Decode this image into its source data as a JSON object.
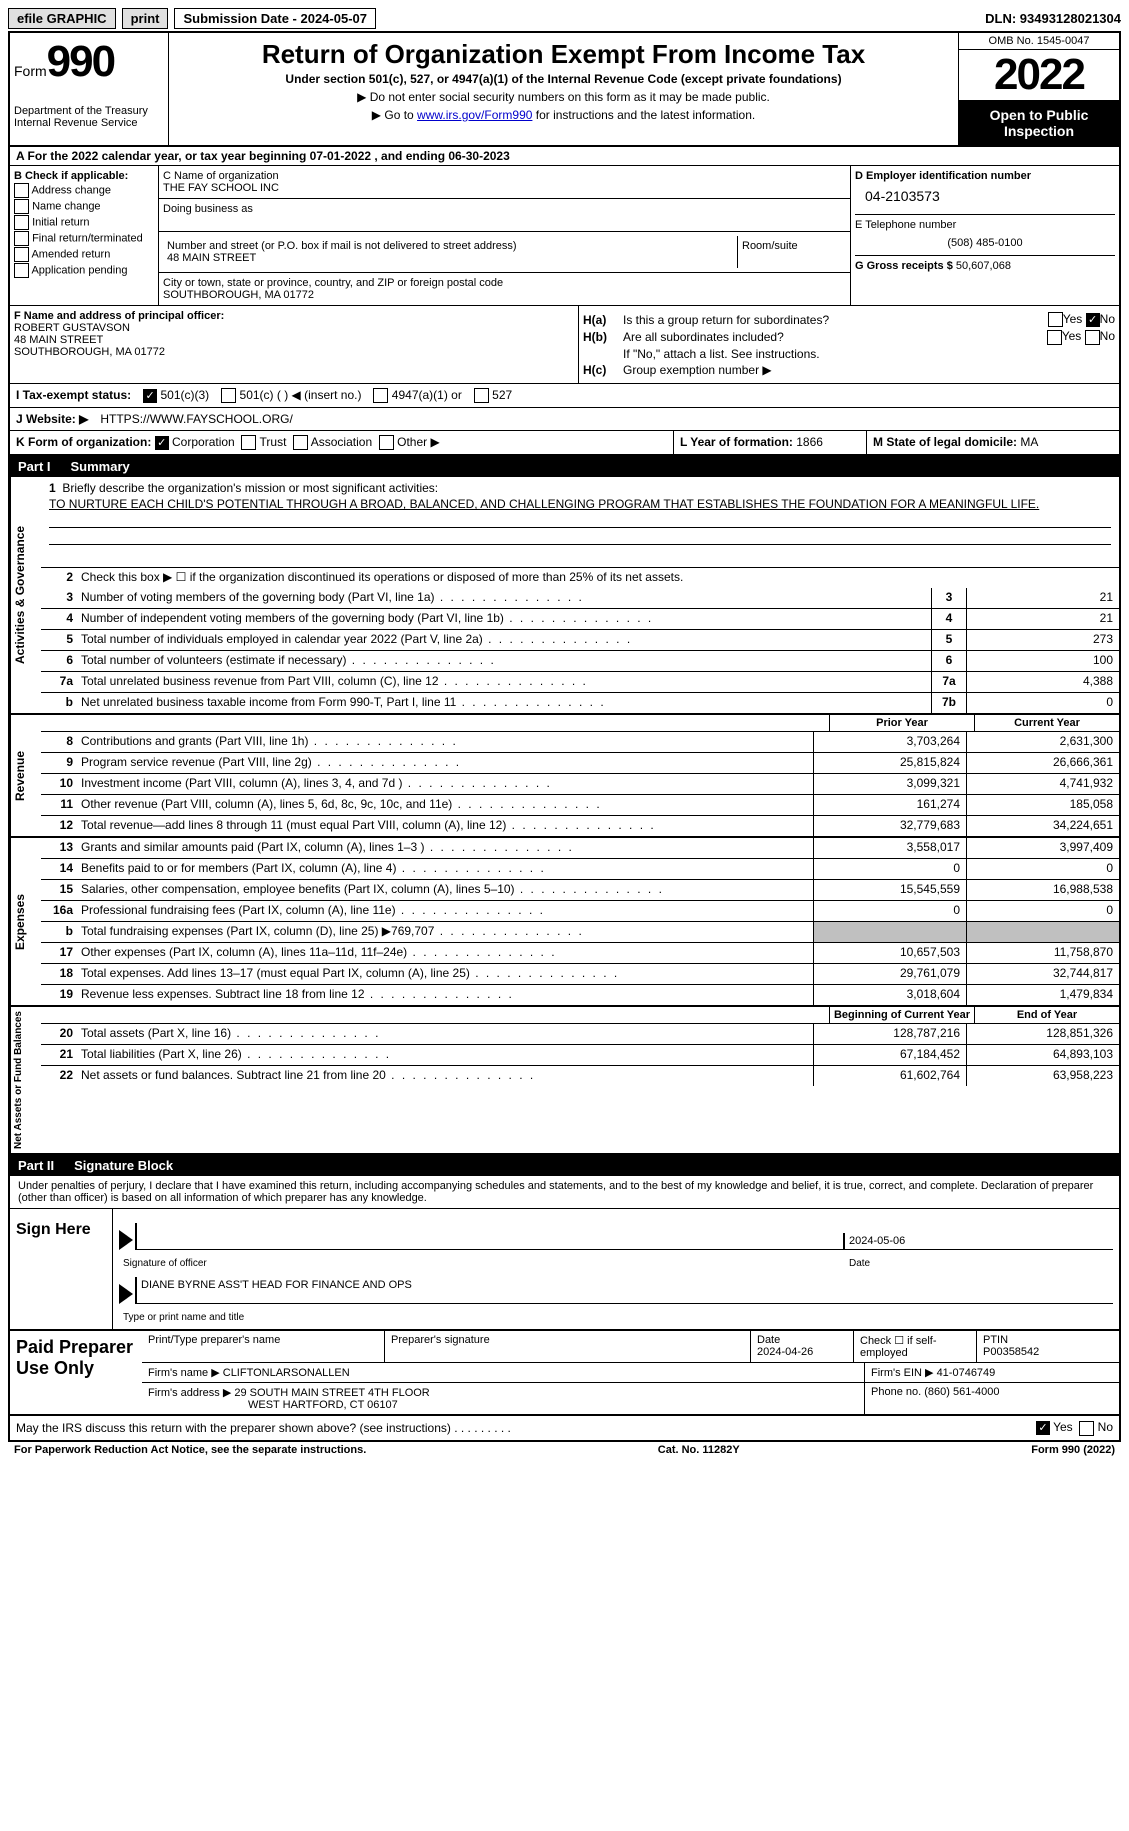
{
  "topbar": {
    "efile": "efile GRAPHIC",
    "print": "print",
    "submission_label": "Submission Date - 2024-05-07",
    "dln": "DLN: 93493128021304"
  },
  "header": {
    "form_prefix": "Form",
    "form_number": "990",
    "dept": "Department of the Treasury",
    "irs": "Internal Revenue Service",
    "title": "Return of Organization Exempt From Income Tax",
    "subtitle": "Under section 501(c), 527, or 4947(a)(1) of the Internal Revenue Code (except private foundations)",
    "note1": "Do not enter social security numbers on this form as it may be made public.",
    "note2_pre": "Go to ",
    "note2_link": "www.irs.gov/Form990",
    "note2_post": " for instructions and the latest information.",
    "omb": "OMB No. 1545-0047",
    "year": "2022",
    "inspection": "Open to Public Inspection"
  },
  "row_a": "A  For the 2022 calendar year, or tax year beginning 07-01-2022    , and ending 06-30-2023",
  "col_b": {
    "label": "B Check if applicable:",
    "opts": [
      "Address change",
      "Name change",
      "Initial return",
      "Final return/terminated",
      "Amended return",
      "Application pending"
    ]
  },
  "col_c": {
    "name_label": "C Name of organization",
    "name": "THE FAY SCHOOL INC",
    "dba_label": "Doing business as",
    "addr_label": "Number and street (or P.O. box if mail is not delivered to street address)",
    "addr": "48 MAIN STREET",
    "room_label": "Room/suite",
    "city_label": "City or town, state or province, country, and ZIP or foreign postal code",
    "city": "SOUTHBOROUGH, MA  01772"
  },
  "col_d": {
    "ein_label": "D Employer identification number",
    "ein": "04-2103573",
    "phone_label": "E Telephone number",
    "phone": "(508) 485-0100",
    "gross_label": "G Gross receipts $ ",
    "gross": "50,607,068"
  },
  "col_f": {
    "label": "F  Name and address of principal officer:",
    "name": "ROBERT GUSTAVSON",
    "addr1": "48 MAIN STREET",
    "addr2": "SOUTHBOROUGH, MA  01772"
  },
  "col_h": {
    "ha_label": "H(a)",
    "ha_text": "Is this a group return for subordinates?",
    "hb_label": "H(b)",
    "hb_text": "Are all subordinates included?",
    "hb_note": "If \"No,\" attach a list. See instructions.",
    "hc_label": "H(c)",
    "hc_text": "Group exemption number ▶",
    "yes": "Yes",
    "no": "No"
  },
  "row_i": {
    "label": "I   Tax-exempt status:",
    "opt1": "501(c)(3)",
    "opt2": "501(c) (  ) ◀ (insert no.)",
    "opt3": "4947(a)(1) or",
    "opt4": "527"
  },
  "row_j": {
    "label": "J   Website: ▶",
    "url": "HTTPS://WWW.FAYSCHOOL.ORG/"
  },
  "row_k": {
    "label": "K Form of organization:",
    "opts": [
      "Corporation",
      "Trust",
      "Association",
      "Other ▶"
    ]
  },
  "row_l": {
    "label": "L Year of formation: ",
    "val": "1866"
  },
  "row_m": {
    "label": "M State of legal domicile: ",
    "val": "MA"
  },
  "part1": {
    "num": "Part I",
    "title": "Summary"
  },
  "vtabs": {
    "gov": "Activities & Governance",
    "rev": "Revenue",
    "exp": "Expenses",
    "net": "Net Assets or Fund Balances"
  },
  "mission": {
    "num": "1",
    "label": "Briefly describe the organization's mission or most significant activities:",
    "text": "TO NURTURE EACH CHILD'S POTENTIAL THROUGH A BROAD, BALANCED, AND CHALLENGING PROGRAM THAT ESTABLISHES THE FOUNDATION FOR A MEANINGFUL LIFE."
  },
  "line2": {
    "num": "2",
    "text": "Check this box ▶ ☐  if the organization discontinued its operations or disposed of more than 25% of its net assets."
  },
  "gov_lines": [
    {
      "num": "3",
      "desc": "Number of voting members of the governing body (Part VI, line 1a)",
      "box": "3",
      "val": "21"
    },
    {
      "num": "4",
      "desc": "Number of independent voting members of the governing body (Part VI, line 1b)",
      "box": "4",
      "val": "21"
    },
    {
      "num": "5",
      "desc": "Total number of individuals employed in calendar year 2022 (Part V, line 2a)",
      "box": "5",
      "val": "273"
    },
    {
      "num": "6",
      "desc": "Total number of volunteers (estimate if necessary)",
      "box": "6",
      "val": "100"
    },
    {
      "num": "7a",
      "desc": "Total unrelated business revenue from Part VIII, column (C), line 12",
      "box": "7a",
      "val": "4,388"
    },
    {
      "num": "b",
      "desc": "Net unrelated business taxable income from Form 990-T, Part I, line 11",
      "box": "7b",
      "val": "0"
    }
  ],
  "col_headers": {
    "prior": "Prior Year",
    "current": "Current Year"
  },
  "rev_lines": [
    {
      "num": "8",
      "desc": "Contributions and grants (Part VIII, line 1h)",
      "prior": "3,703,264",
      "curr": "2,631,300"
    },
    {
      "num": "9",
      "desc": "Program service revenue (Part VIII, line 2g)",
      "prior": "25,815,824",
      "curr": "26,666,361"
    },
    {
      "num": "10",
      "desc": "Investment income (Part VIII, column (A), lines 3, 4, and 7d )",
      "prior": "3,099,321",
      "curr": "4,741,932"
    },
    {
      "num": "11",
      "desc": "Other revenue (Part VIII, column (A), lines 5, 6d, 8c, 9c, 10c, and 11e)",
      "prior": "161,274",
      "curr": "185,058"
    },
    {
      "num": "12",
      "desc": "Total revenue—add lines 8 through 11 (must equal Part VIII, column (A), line 12)",
      "prior": "32,779,683",
      "curr": "34,224,651"
    }
  ],
  "exp_lines": [
    {
      "num": "13",
      "desc": "Grants and similar amounts paid (Part IX, column (A), lines 1–3 )",
      "prior": "3,558,017",
      "curr": "3,997,409"
    },
    {
      "num": "14",
      "desc": "Benefits paid to or for members (Part IX, column (A), line 4)",
      "prior": "0",
      "curr": "0"
    },
    {
      "num": "15",
      "desc": "Salaries, other compensation, employee benefits (Part IX, column (A), lines 5–10)",
      "prior": "15,545,559",
      "curr": "16,988,538"
    },
    {
      "num": "16a",
      "desc": "Professional fundraising fees (Part IX, column (A), line 11e)",
      "prior": "0",
      "curr": "0"
    },
    {
      "num": "b",
      "desc": "Total fundraising expenses (Part IX, column (D), line 25) ▶769,707",
      "prior": "",
      "curr": "",
      "shaded": true
    },
    {
      "num": "17",
      "desc": "Other expenses (Part IX, column (A), lines 11a–11d, 11f–24e)",
      "prior": "10,657,503",
      "curr": "11,758,870"
    },
    {
      "num": "18",
      "desc": "Total expenses. Add lines 13–17 (must equal Part IX, column (A), line 25)",
      "prior": "29,761,079",
      "curr": "32,744,817"
    },
    {
      "num": "19",
      "desc": "Revenue less expenses. Subtract line 18 from line 12",
      "prior": "3,018,604",
      "curr": "1,479,834"
    }
  ],
  "net_headers": {
    "begin": "Beginning of Current Year",
    "end": "End of Year"
  },
  "net_lines": [
    {
      "num": "20",
      "desc": "Total assets (Part X, line 16)",
      "prior": "128,787,216",
      "curr": "128,851,326"
    },
    {
      "num": "21",
      "desc": "Total liabilities (Part X, line 26)",
      "prior": "67,184,452",
      "curr": "64,893,103"
    },
    {
      "num": "22",
      "desc": "Net assets or fund balances. Subtract line 21 from line 20",
      "prior": "61,602,764",
      "curr": "63,958,223"
    }
  ],
  "part2": {
    "num": "Part II",
    "title": "Signature Block"
  },
  "sig_intro": "Under penalties of perjury, I declare that I have examined this return, including accompanying schedules and statements, and to the best of my knowledge and belief, it is true, correct, and complete. Declaration of preparer (other than officer) is based on all information of which preparer has any knowledge.",
  "sign_here": "Sign Here",
  "sig": {
    "date": "2024-05-06",
    "officer_cap": "Signature of officer",
    "date_cap": "Date",
    "name": "DIANE BYRNE  ASS'T HEAD FOR FINANCE AND OPS",
    "name_cap": "Type or print name and title"
  },
  "prep": {
    "label": "Paid Preparer Use Only",
    "h1": "Print/Type preparer's name",
    "h2": "Preparer's signature",
    "h3_label": "Date",
    "h3_val": "2024-04-26",
    "h4_label": "Check ☐ if self-employed",
    "h5_label": "PTIN",
    "h5_val": "P00358542",
    "firm_label": "Firm's name     ▶",
    "firm": "CLIFTONLARSONALLEN",
    "ein_label": "Firm's EIN ▶",
    "ein": "41-0746749",
    "addr_label": "Firm's address ▶",
    "addr1": "29 SOUTH MAIN STREET 4TH FLOOR",
    "addr2": "WEST HARTFORD, CT  06107",
    "phone_label": "Phone no.",
    "phone": "(860) 561-4000"
  },
  "footer_q": "May the IRS discuss this return with the preparer shown above? (see instructions)",
  "footer_yes": "Yes",
  "footer_no": "No",
  "last": {
    "l": "For Paperwork Reduction Act Notice, see the separate instructions.",
    "c": "Cat. No. 11282Y",
    "r": "Form 990 (2022)"
  }
}
